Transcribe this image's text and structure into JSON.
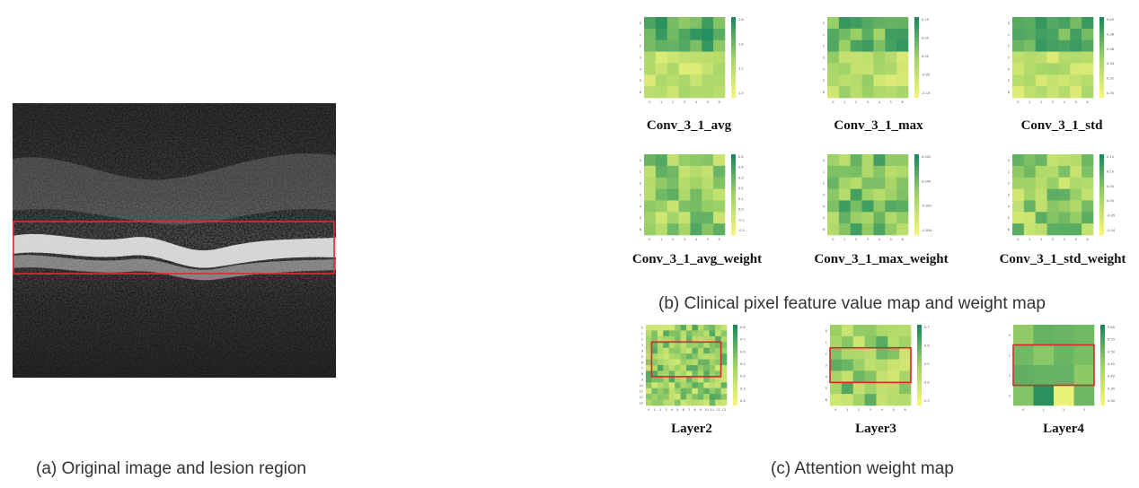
{
  "panel_a": {
    "caption": "(a) Original image and lesion region",
    "lesion_box_color": "#e8292f"
  },
  "panel_b": {
    "caption": "(b) Clinical pixel feature value map and weight map",
    "maps": [
      {
        "label": "Conv_3_1_avg",
        "cbar_ticks": [
          "1.6",
          "1.4",
          "1.2",
          "1.0"
        ]
      },
      {
        "label": "Conv_3_1_max",
        "cbar_ticks": [
          "0.10",
          "0.05",
          "0.00",
          "-0.05",
          "-0.10"
        ]
      },
      {
        "label": "Conv_3_1_std",
        "cbar_ticks": [
          "0.40",
          "0.38",
          "0.36",
          "0.34",
          "0.32",
          "0.30"
        ]
      },
      {
        "label": "Conv_3_1_avg_weight",
        "cbar_ticks": [
          "0.5",
          "0.4",
          "0.3",
          "0.2",
          "0.1",
          "0.0",
          "-0.1",
          "-0.2"
        ]
      },
      {
        "label": "Conv_3_1_max_weight",
        "cbar_ticks": [
          "0.002",
          "0.000",
          "-0.002",
          "-0.004"
        ]
      },
      {
        "label": "Conv_3_1_std_weight",
        "cbar_ticks": [
          "0.15",
          "0.10",
          "0.05",
          "0.00",
          "-0.05",
          "-0.10"
        ]
      }
    ]
  },
  "panel_c": {
    "caption": "(c) Attention weight map",
    "maps": [
      {
        "label": "Layer2",
        "cbar_ticks": [
          "0.8",
          "0.7",
          "0.6",
          "0.5",
          "0.4",
          "0.3",
          "0.2"
        ]
      },
      {
        "label": "Layer3",
        "cbar_ticks": [
          "0.7",
          "0.6",
          "0.5",
          "0.4",
          "0.3"
        ]
      },
      {
        "label": "Layer4",
        "cbar_ticks": [
          "0.60",
          "0.55",
          "0.50",
          "0.45",
          "0.40",
          "0.35",
          "0.30"
        ]
      }
    ]
  },
  "colors": {
    "heat_low": "#f3f57a",
    "heat_mid": "#9fd267",
    "heat_high": "#1c8a5e",
    "highlight": "#d7282f"
  }
}
